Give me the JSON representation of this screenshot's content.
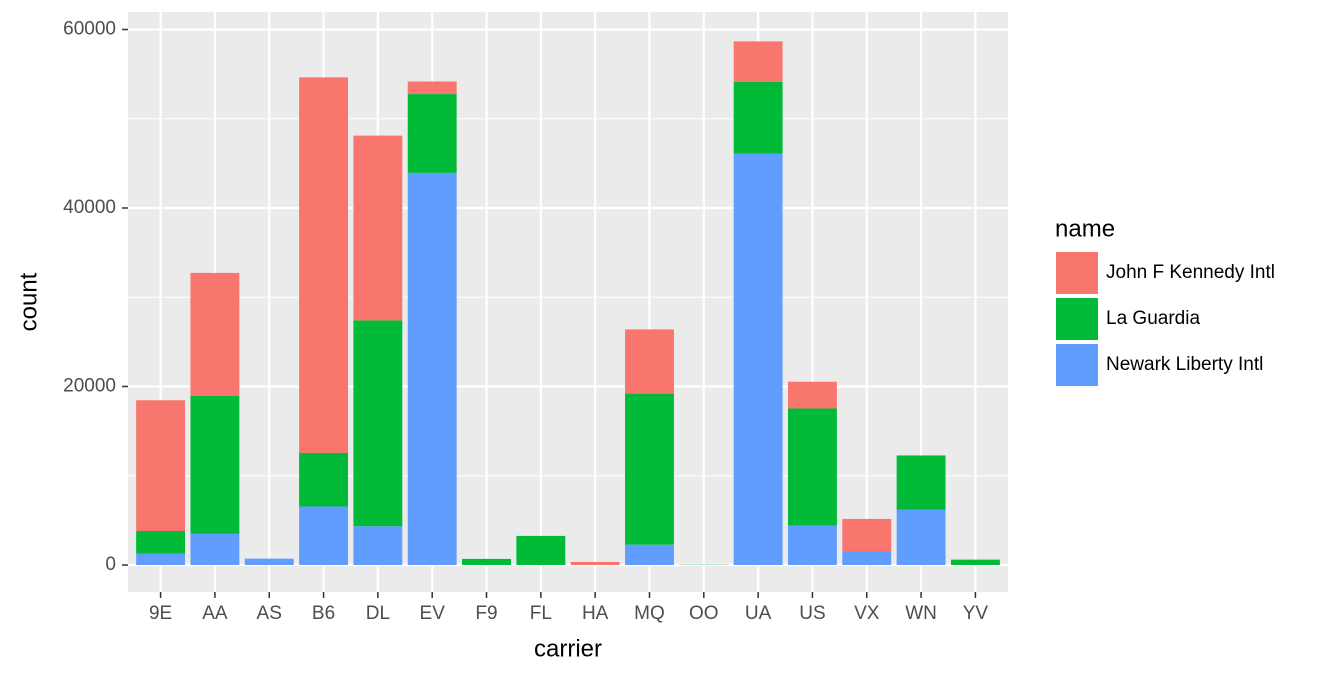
{
  "chart_data": {
    "type": "stacked_bar",
    "x_label": "carrier",
    "y_label": "count",
    "legend_title": "name",
    "legend_position": "right",
    "categories": [
      "9E",
      "AA",
      "AS",
      "B6",
      "DL",
      "EV",
      "F9",
      "FL",
      "HA",
      "MQ",
      "OO",
      "UA",
      "US",
      "VX",
      "WN",
      "YV"
    ],
    "series": [
      {
        "name": "Newark Liberty Intl",
        "color": "#619CFF",
        "values": [
          1268,
          3487,
          714,
          6557,
          4342,
          43939,
          0,
          0,
          0,
          2276,
          6,
          46087,
          4405,
          1566,
          6188,
          0
        ]
      },
      {
        "name": "La Guardia",
        "color": "#00BA38",
        "values": [
          2541,
          15459,
          0,
          6002,
          23067,
          8826,
          685,
          3260,
          0,
          16928,
          26,
          8044,
          13136,
          0,
          6087,
          601
        ]
      },
      {
        "name": "John F Kennedy Intl",
        "color": "#F8766D",
        "values": [
          14651,
          13783,
          0,
          42076,
          20701,
          1408,
          0,
          0,
          342,
          7193,
          0,
          4534,
          2995,
          3596,
          0,
          0
        ]
      }
    ],
    "ylim": [
      -3025,
      61960
    ],
    "yticks": [
      0,
      20000,
      40000,
      60000
    ],
    "grid": true
  }
}
